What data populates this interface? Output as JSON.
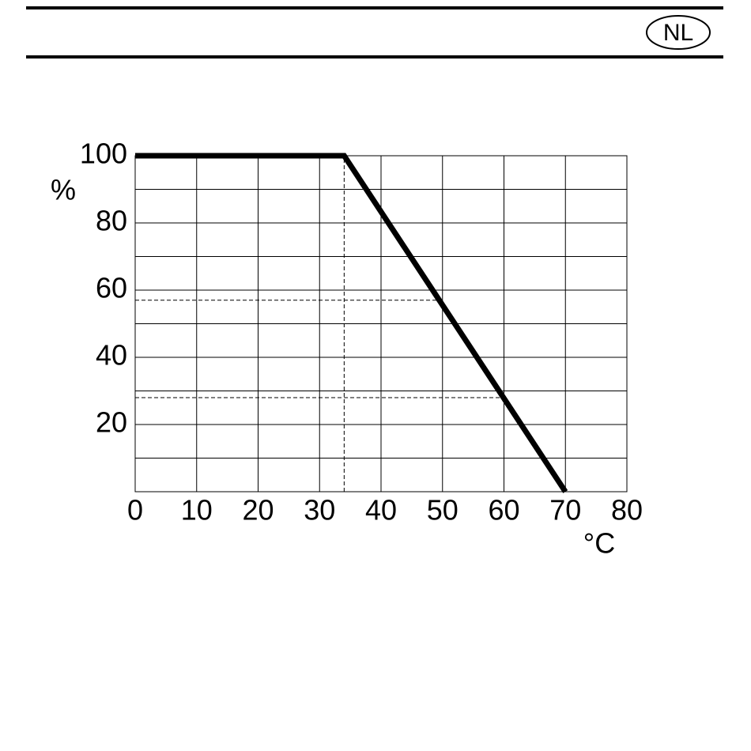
{
  "header": {
    "badge": "NL"
  },
  "chart_data": {
    "type": "line",
    "y_label": "%",
    "x_label": "°C",
    "x": [
      0,
      34,
      70
    ],
    "values": [
      100,
      100,
      0
    ],
    "color": "#000000",
    "xlim": [
      0,
      80
    ],
    "xticks": [
      0,
      10,
      20,
      30,
      40,
      50,
      60,
      70,
      80
    ],
    "ylim": [
      0,
      100
    ],
    "yticks": [
      20,
      40,
      60,
      80,
      100
    ],
    "yminor": [
      10,
      30,
      50,
      70,
      90
    ],
    "grid": true,
    "guides": [
      {
        "x": [
          34,
          34
        ],
        "y": [
          0,
          100
        ]
      },
      {
        "x": [
          0,
          50
        ],
        "y": [
          57,
          57
        ]
      },
      {
        "x": [
          0,
          60
        ],
        "y": [
          28,
          28
        ]
      }
    ]
  }
}
